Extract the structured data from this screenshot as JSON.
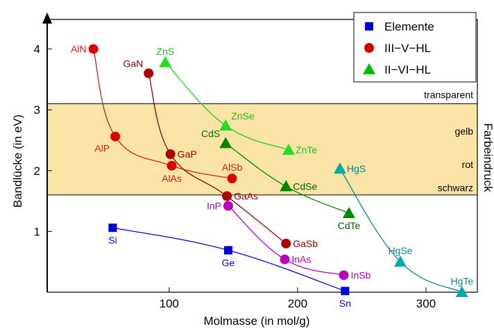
{
  "chart_data": {
    "type": "scatter",
    "xlabel": "Molmasse (in mol/g)",
    "ylabel": "Bandlücke  (in eV)",
    "right_label": "Farbeindruck",
    "xlim": [
      5,
      340
    ],
    "ylim": [
      0,
      4.6
    ],
    "x_ticks": [
      100,
      200,
      300
    ],
    "y_ticks": [
      1,
      2,
      3,
      4
    ],
    "x_tick_labels": [
      "100",
      "200",
      "300"
    ],
    "y_tick_labels": [
      "1",
      "2",
      "3",
      "4"
    ],
    "band": {
      "from": 1.6,
      "to": 3.1,
      "color": "#f9e4a6"
    },
    "band_lines": [
      1.6,
      3.1
    ],
    "annotations": [
      {
        "text": "transparent",
        "y": 3.25
      },
      {
        "text": "gelb",
        "y": 2.65
      },
      {
        "text": "rot",
        "y": 2.1
      },
      {
        "text": "schwarz",
        "y": 1.72
      }
    ],
    "legend": {
      "position": "top-right"
    },
    "series": [
      {
        "name": "Elemente",
        "color": "#0000dd",
        "marker": "square",
        "points": [
          {
            "label": "Si",
            "x": 56,
            "y": 1.06,
            "pos": "below"
          },
          {
            "label": "Ge",
            "x": 146,
            "y": 0.69,
            "pos": "below"
          },
          {
            "label": "Sn",
            "x": 237,
            "y": 0.02,
            "pos": "below"
          }
        ]
      },
      {
        "name": "III−V−HL",
        "color": "#d00000",
        "label_colors": "#c00000",
        "marker": "circle",
        "points": [
          {
            "label": "AlN",
            "x": 41,
            "y": 4.0,
            "pos": "left"
          },
          {
            "label": "AlP",
            "x": 58,
            "y": 2.56,
            "pos": "below-left"
          },
          {
            "label": "AlAs",
            "x": 102,
            "y": 2.08,
            "pos": "below"
          },
          {
            "label": "AlSb",
            "x": 149,
            "y": 1.87,
            "pos": "above"
          },
          {
            "label": "GaN",
            "x": 84,
            "y": 3.6,
            "pos": "above-left"
          },
          {
            "label": "GaP",
            "x": 101,
            "y": 2.27,
            "pos": "right"
          },
          {
            "label": "GaAs",
            "x": 145,
            "y": 1.58,
            "pos": "right"
          },
          {
            "label": "GaSb",
            "x": 191,
            "y": 0.8,
            "pos": "right"
          },
          {
            "label": "InP",
            "x": 146,
            "y": 1.42,
            "pos": "left"
          },
          {
            "label": "InAs",
            "x": 190,
            "y": 0.54,
            "pos": "right"
          },
          {
            "label": "InSb",
            "x": 236,
            "y": 0.28,
            "pos": "right"
          }
        ]
      },
      {
        "name": "II−VI−HL",
        "color": "#00bb00",
        "marker": "triangle",
        "points": [
          {
            "label": "ZnS",
            "x": 97,
            "y": 3.78,
            "pos": "above"
          },
          {
            "label": "ZnSe",
            "x": 144,
            "y": 2.74,
            "pos": "above-right"
          },
          {
            "label": "ZnTe",
            "x": 193,
            "y": 2.34,
            "pos": "right"
          },
          {
            "label": "CdS",
            "x": 144,
            "y": 2.45,
            "pos": "above-left"
          },
          {
            "label": "CdSe",
            "x": 191,
            "y": 1.74,
            "pos": "right"
          },
          {
            "label": "CdTe",
            "x": 240,
            "y": 1.3,
            "pos": "below"
          },
          {
            "label": "HgS",
            "x": 233,
            "y": 2.03,
            "pos": "right"
          },
          {
            "label": "HgSe",
            "x": 280,
            "y": 0.5,
            "pos": "above"
          },
          {
            "label": "HgTe",
            "x": 328,
            "y": 0.0,
            "pos": "above"
          }
        ]
      }
    ],
    "curves": [
      {
        "series": 0,
        "points": [
          "Si",
          "Ge",
          "Sn"
        ]
      },
      {
        "series": 1,
        "color": "#cc2020",
        "points": [
          "AlN",
          "AlP",
          "AlAs",
          "AlSb"
        ]
      },
      {
        "series": 1,
        "color": "#8b0000",
        "points": [
          "GaN",
          "GaP",
          "GaAs",
          "GaSb"
        ]
      },
      {
        "series": 1,
        "color": "#b000b0",
        "points": [
          "InP",
          "InAs",
          "InSb"
        ]
      },
      {
        "series": 2,
        "color": "#22cc22",
        "points": [
          "ZnS",
          "ZnSe",
          "ZnTe"
        ]
      },
      {
        "series": 2,
        "color": "#008800",
        "points": [
          "CdS",
          "CdSe",
          "CdTe"
        ]
      },
      {
        "series": 2,
        "color": "#008b8b",
        "points": [
          "HgS",
          "HgSe",
          "HgTe"
        ]
      }
    ],
    "point_label_colors": {
      "Si": "#0000dd",
      "Ge": "#0000dd",
      "Sn": "#0000dd",
      "AlN": "#cc2020",
      "AlP": "#cc2020",
      "AlAs": "#cc2020",
      "AlSb": "#cc2020",
      "GaN": "#8b0000",
      "GaP": "#8b0000",
      "GaAs": "#8b0000",
      "GaSb": "#8b0000",
      "InP": "#b000b0",
      "InAs": "#b000b0",
      "InSb": "#b000b0",
      "ZnS": "#22bb22",
      "ZnSe": "#22bb22",
      "ZnTe": "#22bb22",
      "CdS": "#006600",
      "CdSe": "#006600",
      "CdTe": "#006600",
      "HgS": "#008b8b",
      "HgSe": "#008b8b",
      "HgTe": "#008b8b"
    },
    "point_marker_colors": {
      "Si": "#0000dd",
      "Ge": "#0000dd",
      "Sn": "#0000dd",
      "AlN": "#dd0000",
      "AlP": "#dd0000",
      "AlAs": "#dd0000",
      "AlSb": "#dd0000",
      "GaN": "#aa0000",
      "GaP": "#aa0000",
      "GaAs": "#aa0000",
      "GaSb": "#aa0000",
      "InP": "#bb00bb",
      "InAs": "#bb00bb",
      "InSb": "#bb00bb",
      "ZnS": "#22dd22",
      "ZnSe": "#22dd22",
      "ZnTe": "#22dd22",
      "CdS": "#008800",
      "CdSe": "#008800",
      "CdTe": "#008800",
      "HgS": "#00aaaa",
      "HgSe": "#00aaaa",
      "HgTe": "#00aaaa"
    }
  }
}
